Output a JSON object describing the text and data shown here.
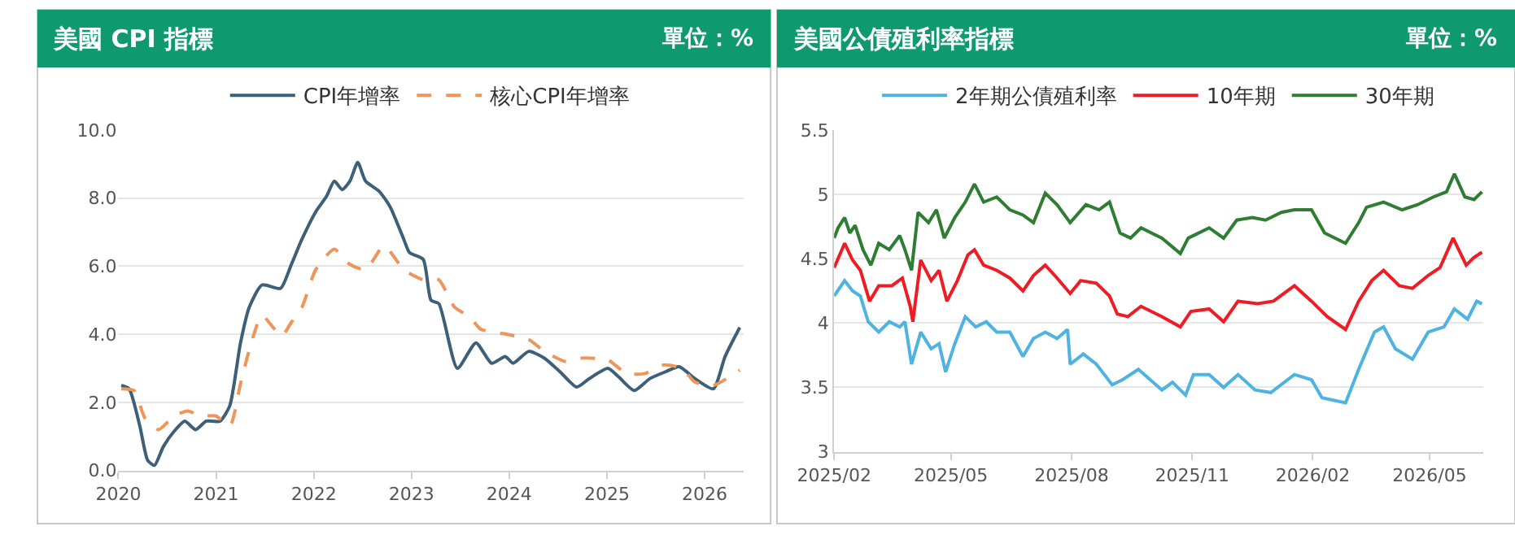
{
  "chart_data": [
    {
      "type": "line",
      "title": "美國 CPI 指標",
      "annotations": [
        "單位：%"
      ],
      "legend": "top",
      "grid": "y",
      "marker": "none",
      "line_style": "solid",
      "xlim": [
        2020,
        2026.4
      ],
      "xticks": [
        2020,
        2021,
        2022,
        2023,
        2024,
        2025,
        2026
      ],
      "ylim": [
        0,
        10
      ],
      "yticks": [
        {
          "value": 0,
          "label": "0.0"
        },
        {
          "value": 2,
          "label": "2.0"
        },
        {
          "value": 4,
          "label": "4.0"
        },
        {
          "value": 6,
          "label": "6.0"
        },
        {
          "value": 8,
          "label": "8.0"
        },
        {
          "value": 10,
          "label": "10.0"
        }
      ],
      "series": [
        {
          "name": "CPI年增率",
          "color": "#3d6078",
          "x": [
            2020.03,
            2020.11,
            2020.22,
            2020.3,
            2020.37,
            2020.46,
            2020.57,
            2020.68,
            2020.79,
            2020.9,
            2021.04,
            2021.14,
            2021.25,
            2021.34,
            2021.47,
            2021.66,
            2021.77,
            2021.88,
            2022.02,
            2022.13,
            2022.21,
            2022.29,
            2022.37,
            2022.45,
            2022.53,
            2022.67,
            2022.78,
            2022.92,
            2022.98,
            2023.12,
            2023.2,
            2023.28,
            2023.47,
            2023.66,
            2023.82,
            2023.96,
            2024.04,
            2024.2,
            2024.36,
            2024.52,
            2024.69,
            2024.82,
            2025.01,
            2025.12,
            2025.28,
            2025.44,
            2025.6,
            2025.74,
            2025.9,
            2026.09,
            2026.21,
            2026.36
          ],
          "values": [
            2.5,
            2.4,
            1.3,
            0.3,
            0.15,
            0.7,
            1.15,
            1.45,
            1.2,
            1.45,
            1.45,
            1.9,
            3.75,
            4.8,
            5.45,
            5.35,
            6.05,
            6.8,
            7.6,
            8.05,
            8.5,
            8.25,
            8.5,
            9.05,
            8.5,
            8.2,
            7.75,
            6.8,
            6.4,
            6.2,
            5.0,
            4.9,
            3.0,
            3.75,
            3.15,
            3.35,
            3.15,
            3.5,
            3.3,
            2.9,
            2.45,
            2.7,
            3.0,
            2.75,
            2.35,
            2.7,
            2.9,
            3.05,
            2.7,
            2.4,
            3.35,
            4.2
          ]
        },
        {
          "name": "核心CPI年增率",
          "color": "#f0955a",
          "line_style": "dashed",
          "x": [
            2020.03,
            2020.16,
            2020.27,
            2020.41,
            2020.57,
            2020.71,
            2020.84,
            2021.0,
            2021.14,
            2021.25,
            2021.36,
            2021.47,
            2021.67,
            2021.77,
            2021.88,
            2022.02,
            2022.21,
            2022.37,
            2022.53,
            2022.72,
            2022.92,
            2023.12,
            2023.28,
            2023.44,
            2023.6,
            2023.71,
            2023.98,
            2024.2,
            2024.36,
            2024.58,
            2024.74,
            2025.01,
            2025.2,
            2025.39,
            2025.58,
            2025.77,
            2025.9,
            2026.09,
            2026.36
          ],
          "values": [
            2.4,
            2.35,
            1.55,
            1.2,
            1.6,
            1.75,
            1.6,
            1.6,
            1.3,
            2.55,
            3.75,
            4.55,
            3.95,
            4.35,
            4.8,
            5.9,
            6.5,
            6.05,
            5.9,
            6.6,
            5.9,
            5.6,
            5.6,
            4.8,
            4.5,
            4.15,
            4.0,
            3.85,
            3.5,
            3.2,
            3.3,
            3.25,
            2.85,
            2.85,
            3.1,
            3.0,
            2.6,
            2.5,
            2.95
          ]
        }
      ]
    },
    {
      "type": "line",
      "title": "美國公債殖利率指標",
      "annotations": [
        "單位：%"
      ],
      "legend": "top",
      "grid": "y",
      "marker": "none",
      "line_style": "solid",
      "xlim": [
        "2025-02-01",
        "2026-06-11"
      ],
      "xticks": [
        {
          "value": "2025-02-01",
          "label": "2025/02"
        },
        {
          "value": "2025-05-01",
          "label": "2025/05"
        },
        {
          "value": "2025-08-01",
          "label": "2025/08"
        },
        {
          "value": "2025-11-01",
          "label": "2025/11"
        },
        {
          "value": "2026-02-01",
          "label": "2026/02"
        },
        {
          "value": "2026-05-01",
          "label": "2026/05"
        }
      ],
      "ylim": [
        3,
        5.5
      ],
      "yticks": [
        3,
        3.5,
        4,
        4.5,
        5,
        5.5
      ],
      "series": [
        {
          "name": "2年期公債殖利率",
          "color": "#4eb3e0",
          "x": [
            "2025-02-01",
            "2025-02-09",
            "2025-02-15",
            "2025-02-21",
            "2025-02-27",
            "2025-03-07",
            "2025-03-15",
            "2025-03-23",
            "2025-03-27",
            "2025-04-01",
            "2025-04-08",
            "2025-04-16",
            "2025-04-22",
            "2025-04-27",
            "2025-05-04",
            "2025-05-12",
            "2025-05-20",
            "2025-05-28",
            "2025-06-05",
            "2025-06-15",
            "2025-06-25",
            "2025-07-03",
            "2025-07-12",
            "2025-07-21",
            "2025-07-29",
            "2025-07-31",
            "2025-08-10",
            "2025-08-20",
            "2025-09-01",
            "2025-09-09",
            "2025-09-21",
            "2025-10-09",
            "2025-10-17",
            "2025-10-27",
            "2025-11-02",
            "2025-11-14",
            "2025-11-25",
            "2025-12-06",
            "2025-12-19",
            "2025-12-31",
            "2026-01-18",
            "2026-01-31",
            "2026-02-08",
            "2026-02-26",
            "2026-03-08",
            "2026-03-20",
            "2026-03-27",
            "2026-04-05",
            "2026-04-18",
            "2026-04-30",
            "2026-05-12",
            "2026-05-20",
            "2026-05-30",
            "2026-06-06",
            "2026-06-10"
          ],
          "values": [
            4.21,
            4.33,
            4.25,
            4.21,
            4.01,
            3.93,
            4.01,
            3.97,
            4.01,
            3.68,
            3.93,
            3.8,
            3.84,
            3.62,
            3.84,
            4.05,
            3.97,
            4.01,
            3.93,
            3.93,
            3.74,
            3.88,
            3.93,
            3.88,
            3.95,
            3.68,
            3.76,
            3.68,
            3.52,
            3.56,
            3.64,
            3.48,
            3.54,
            3.44,
            3.6,
            3.6,
            3.5,
            3.6,
            3.48,
            3.46,
            3.6,
            3.56,
            3.42,
            3.38,
            3.64,
            3.93,
            3.97,
            3.8,
            3.72,
            3.93,
            3.97,
            4.11,
            4.03,
            4.17,
            4.15
          ]
        },
        {
          "name": "10年期",
          "color": "#ee1c25",
          "x": [
            "2025-02-01",
            "2025-02-09",
            "2025-02-15",
            "2025-02-21",
            "2025-02-28",
            "2025-03-07",
            "2025-03-17",
            "2025-03-25",
            "2025-03-31",
            "2025-04-02",
            "2025-04-08",
            "2025-04-16",
            "2025-04-22",
            "2025-04-28",
            "2025-05-06",
            "2025-05-14",
            "2025-05-19",
            "2025-05-26",
            "2025-06-05",
            "2025-06-15",
            "2025-06-25",
            "2025-07-03",
            "2025-07-12",
            "2025-07-21",
            "2025-07-31",
            "2025-08-08",
            "2025-08-20",
            "2025-08-30",
            "2025-09-05",
            "2025-09-13",
            "2025-09-23",
            "2025-10-09",
            "2025-10-23",
            "2025-10-31",
            "2025-11-14",
            "2025-11-25",
            "2025-12-06",
            "2025-12-21",
            "2026-01-02",
            "2026-01-18",
            "2026-01-31",
            "2026-02-12",
            "2026-02-26",
            "2026-03-08",
            "2026-03-18",
            "2026-03-27",
            "2026-04-08",
            "2026-04-18",
            "2026-04-30",
            "2026-05-09",
            "2026-05-19",
            "2026-05-29",
            "2026-06-04",
            "2026-06-10"
          ],
          "values": [
            4.43,
            4.62,
            4.49,
            4.41,
            4.17,
            4.29,
            4.29,
            4.35,
            4.13,
            4.01,
            4.49,
            4.33,
            4.41,
            4.17,
            4.33,
            4.53,
            4.57,
            4.45,
            4.41,
            4.35,
            4.25,
            4.37,
            4.45,
            4.35,
            4.23,
            4.33,
            4.31,
            4.21,
            4.07,
            4.05,
            4.13,
            4.05,
            3.97,
            4.09,
            4.11,
            4.01,
            4.17,
            4.15,
            4.17,
            4.29,
            4.17,
            4.05,
            3.95,
            4.17,
            4.33,
            4.41,
            4.29,
            4.27,
            4.37,
            4.43,
            4.66,
            4.45,
            4.51,
            4.55
          ]
        },
        {
          "name": "30年期",
          "color": "#2e7d32",
          "x": [
            "2025-02-01",
            "2025-02-04",
            "2025-02-09",
            "2025-02-13",
            "2025-02-17",
            "2025-02-23",
            "2025-03-01",
            "2025-03-07",
            "2025-03-15",
            "2025-03-23",
            "2025-03-27",
            "2025-04-01",
            "2025-04-06",
            "2025-04-14",
            "2025-04-20",
            "2025-04-26",
            "2025-05-04",
            "2025-05-12",
            "2025-05-19",
            "2025-05-26",
            "2025-06-05",
            "2025-06-15",
            "2025-06-25",
            "2025-07-03",
            "2025-07-12",
            "2025-07-21",
            "2025-07-31",
            "2025-08-12",
            "2025-08-22",
            "2025-08-30",
            "2025-09-07",
            "2025-09-15",
            "2025-09-23",
            "2025-10-09",
            "2025-10-23",
            "2025-10-29",
            "2025-11-14",
            "2025-11-25",
            "2025-12-05",
            "2025-12-17",
            "2025-12-27",
            "2026-01-08",
            "2026-01-18",
            "2026-01-31",
            "2026-02-10",
            "2026-02-26",
            "2026-03-08",
            "2026-03-14",
            "2026-03-27",
            "2026-04-10",
            "2026-04-22",
            "2026-05-04",
            "2026-05-14",
            "2026-05-20",
            "2026-05-28",
            "2026-06-04",
            "2026-06-10"
          ],
          "values": [
            4.66,
            4.74,
            4.82,
            4.7,
            4.76,
            4.57,
            4.45,
            4.62,
            4.57,
            4.68,
            4.57,
            4.41,
            4.86,
            4.78,
            4.88,
            4.66,
            4.82,
            4.94,
            5.08,
            4.94,
            4.98,
            4.88,
            4.84,
            4.78,
            5.01,
            4.92,
            4.78,
            4.92,
            4.88,
            4.94,
            4.7,
            4.66,
            4.74,
            4.66,
            4.54,
            4.66,
            4.74,
            4.66,
            4.8,
            4.82,
            4.8,
            4.86,
            4.88,
            4.88,
            4.7,
            4.62,
            4.78,
            4.9,
            4.94,
            4.88,
            4.92,
            4.98,
            5.02,
            5.16,
            4.98,
            4.96,
            5.02
          ]
        }
      ]
    }
  ]
}
